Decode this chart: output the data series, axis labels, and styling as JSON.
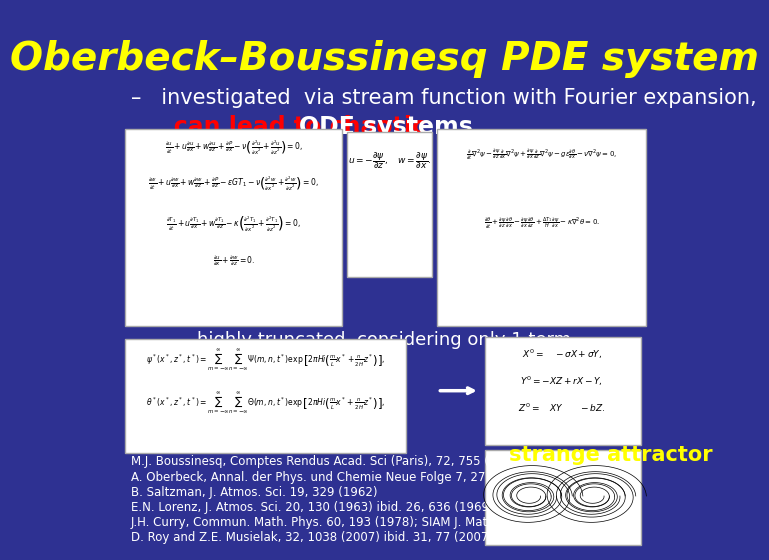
{
  "bg_color": "#2E3192",
  "title": "Oberbeck–Boussinesq PDE system",
  "title_color": "#FFFF00",
  "title_fontsize": 28,
  "bullet_text": "–   investigated  via stream function with Fourier expansion,",
  "bullet_color": "#FFFFFF",
  "bullet_fontsize": 15,
  "chaotic_line_pre": "   can lead to chaotic ",
  "chaotic_word": "ODE systems",
  "chaotic_pre_color": "#FF0000",
  "chaotic_word_color": "#FFFFFF",
  "chaotic_fontsize": 17,
  "truncated_text": "highly truncated, considering only 1 term",
  "truncated_color": "#FFFFFF",
  "truncated_fontsize": 13,
  "strange_text": "strange attractor",
  "strange_color": "#FFFF00",
  "strange_fontsize": 15,
  "refs": [
    "M.J. Boussinesq, Comptes Rendus Acad. Sci (Paris), 72, 755 (1871)",
    "A. Oberbeck, Annal. der Phys. und Chemie Neue Folge 7, 271 (1879)",
    "B. Saltzman, J. Atmos. Sci. 19, 329 (1962)",
    "E.N. Lorenz, J. Atmos. Sci. 20, 130 (1963) ibid. 26, 636 (1969) ibid. 63, 2056 (2005)",
    "J.H. Curry, Commun. Math. Phys. 60, 193 (1978); SIAM J. Math. Anal. 10, 71 (1979)",
    "D. Roy and Z.E. Musielak, 32, 1038 (2007) ibid. 31, 77 (2007); ibid. 33, 1064 (2007)"
  ],
  "ref_color": "#FFFFFF",
  "ref_fontsize": 8.5,
  "pde_box_color": "#FFFFFF",
  "pde_box_bg": "#FFFFFF",
  "arrow_color": "#FFFFFF",
  "lorenz_box_color": "#FFFFFF",
  "lorenz_box_bg": "#FFFFFF"
}
